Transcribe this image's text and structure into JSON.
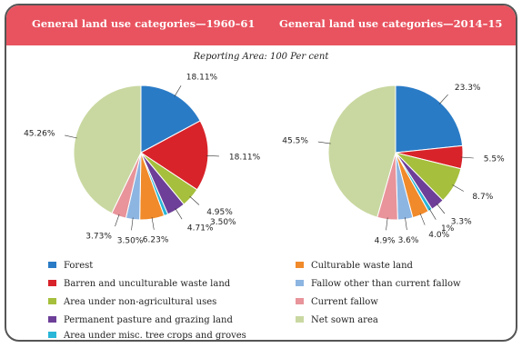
{
  "header": {
    "left_title": "General land use categories—1960–61",
    "right_title": "General land use categories—2014–15"
  },
  "subtitle": "Reporting Area: 100 Per cent",
  "colors": {
    "forest": "#2a7bc6",
    "barren": "#d8232a",
    "non_agri": "#a6bf3c",
    "pasture": "#6d3f98",
    "tree_crops": "#29b6d8",
    "culturable_waste": "#f08a2a",
    "fallow_other": "#8db5e2",
    "current_fallow": "#e8949a",
    "net_sown": "#c9d8a1",
    "header_bg": "#e8535f"
  },
  "legend": [
    {
      "key": "forest",
      "label": "Forest"
    },
    {
      "key": "culturable_waste",
      "label": "Culturable waste land"
    },
    {
      "key": "barren",
      "label": "Barren and unculturable waste land"
    },
    {
      "key": "fallow_other",
      "label": "Fallow other than current fallow"
    },
    {
      "key": "non_agri",
      "label": "Area under non-agricultural uses"
    },
    {
      "key": "current_fallow",
      "label": "Current fallow"
    },
    {
      "key": "pasture",
      "label": "Permanent pasture and grazing land"
    },
    {
      "key": "net_sown",
      "label": "Net sown area"
    },
    {
      "key": "tree_crops",
      "label": "Area under misc. tree crops and groves"
    }
  ],
  "chart_data": [
    {
      "type": "pie",
      "title": "General land use categories—1960–61",
      "slices": [
        {
          "key": "forest",
          "value": 18.11,
          "label": "18.11%"
        },
        {
          "key": "barren",
          "value": 18.11,
          "label": "18.11%"
        },
        {
          "key": "non_agri",
          "value": 4.95,
          "label": "4.95%"
        },
        {
          "key": "pasture",
          "value": 4.71,
          "label": "4.71%"
        },
        {
          "key": "tree_crops",
          "value": 1.0,
          "label": ""
        },
        {
          "key": "culturable_waste",
          "value": 6.23,
          "label": "6.23%"
        },
        {
          "key": "fallow_other",
          "value": 3.5,
          "label": "3.50%"
        },
        {
          "key": "current_fallow",
          "value": 3.73,
          "label": "3.73%"
        },
        {
          "key": "net_sown",
          "value": 45.26,
          "label": "45.26%"
        }
      ],
      "extra_labels": [
        "3.50%"
      ]
    },
    {
      "type": "pie",
      "title": "General land use categories—2014–15",
      "slices": [
        {
          "key": "forest",
          "value": 23.3,
          "label": "23.3%"
        },
        {
          "key": "barren",
          "value": 5.5,
          "label": "5.5%"
        },
        {
          "key": "non_agri",
          "value": 8.7,
          "label": "8.7%"
        },
        {
          "key": "pasture",
          "value": 3.3,
          "label": "3.3%"
        },
        {
          "key": "tree_crops",
          "value": 1,
          "label": "1%"
        },
        {
          "key": "culturable_waste",
          "value": 4.0,
          "label": "4.0%"
        },
        {
          "key": "fallow_other",
          "value": 3.6,
          "label": "3.6%"
        },
        {
          "key": "current_fallow",
          "value": 4.9,
          "label": "4.9%"
        },
        {
          "key": "net_sown",
          "value": 45.5,
          "label": "45.5%"
        }
      ]
    }
  ]
}
